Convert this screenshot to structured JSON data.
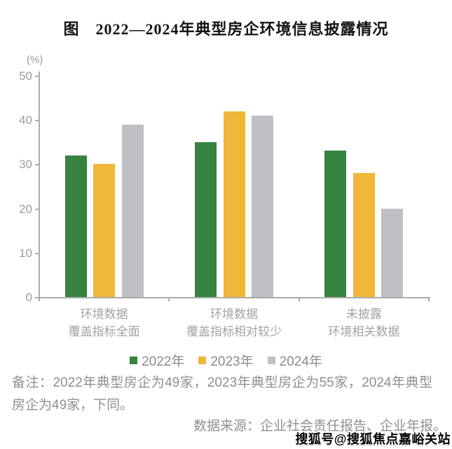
{
  "page": {
    "title": "图　2022—2024年典型房企环境信息披露情况"
  },
  "chart_data": {
    "type": "bar",
    "title": "图 2022—2024年典型房企环境信息披露情况",
    "unit_label": "(%)",
    "categories": [
      "环境数据\n覆盖指标全面",
      "环境数据\n覆盖指标相对较少",
      "未披露\n环境相关数据"
    ],
    "series": [
      {
        "name": "2022年",
        "color": "#35833F",
        "values": [
          32,
          35,
          33
        ]
      },
      {
        "name": "2023年",
        "color": "#EFB83B",
        "values": [
          30,
          42,
          28
        ]
      },
      {
        "name": "2024年",
        "color": "#BFC0C4",
        "values": [
          39,
          41,
          20
        ]
      }
    ],
    "ylabel": "(%)",
    "xlabel": "",
    "ylim": [
      0,
      50
    ],
    "yticks": [
      0,
      10,
      20,
      30,
      40,
      50
    ],
    "grid": false,
    "legend_position": "bottom"
  },
  "footer": {
    "note": "备注：2022年典型房企为49家，2023年典型房企为55家，2024年典型房企为49家，下同。",
    "source": "数据来源：企业社会责任报告、企业年报。",
    "watermark": "搜狐号@搜狐焦点嘉峪关站"
  }
}
